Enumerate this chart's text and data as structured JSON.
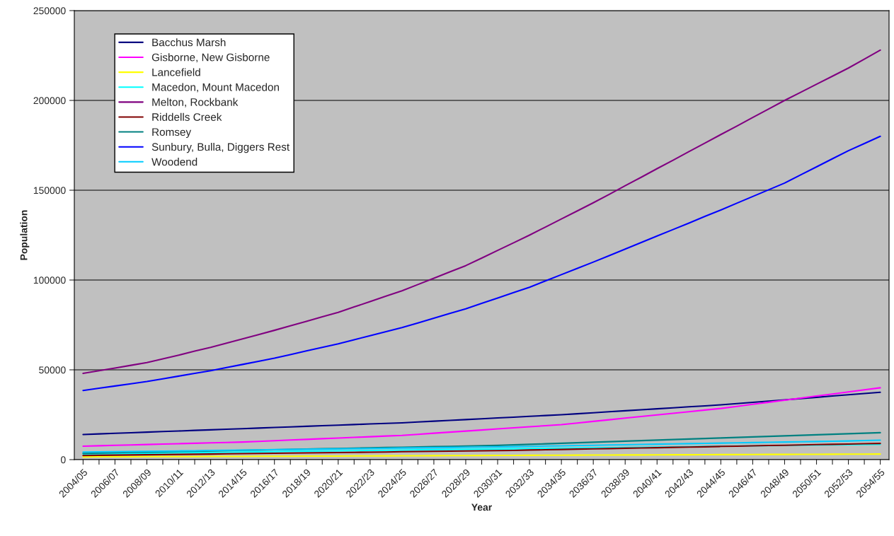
{
  "chart_data": {
    "type": "line",
    "xlabel": "Year",
    "ylabel": "Population",
    "categories": [
      "2004/05",
      null,
      "2006/07",
      null,
      "2008/09",
      null,
      "2010/11",
      null,
      "2012/13",
      null,
      "2014/15",
      null,
      "2016/17",
      null,
      "2018/19",
      null,
      "2020/21",
      null,
      "2022/23",
      null,
      "2024/25",
      null,
      "2026/27",
      null,
      "2028/29",
      null,
      "2030/31",
      null,
      "2032/33",
      null,
      "2034/35",
      null,
      "2036/37",
      null,
      "2038/39",
      null,
      "2040/41",
      null,
      "2042/43",
      null,
      "2044/45",
      null,
      "2046/47",
      null,
      "2048/49",
      null,
      "2050/51",
      null,
      "2052/53",
      null,
      "2054/55"
    ],
    "ylim": [
      0,
      250000
    ],
    "yticks": [
      0,
      50000,
      100000,
      150000,
      200000,
      250000
    ],
    "grid": "y",
    "legend": "top left",
    "marker": "none",
    "line_style": "solid",
    "series": [
      {
        "name": "Bacchus Marsh",
        "color": "#000080",
        "values": [
          14000,
          14325,
          14650,
          14975,
          15300,
          15625,
          15950,
          16275,
          16600,
          16925,
          17250,
          17575,
          17900,
          18225,
          18550,
          18875,
          19200,
          19525,
          19850,
          20175,
          20500,
          20950,
          21400,
          21850,
          22300,
          22750,
          23200,
          23650,
          24100,
          24550,
          25000,
          25550,
          26100,
          26650,
          27200,
          27750,
          28300,
          28850,
          29400,
          29950,
          30500,
          31200,
          31900,
          32600,
          33300,
          34000,
          34700,
          35400,
          36100,
          36800,
          37500
        ]
      },
      {
        "name": "Gisborne, New Gisborne",
        "color": "#ff00ff",
        "values": [
          7500,
          7730,
          7960,
          8190,
          8420,
          8650,
          8880,
          9110,
          9340,
          9570,
          9800,
          10170,
          10540,
          10910,
          11280,
          11650,
          12020,
          12390,
          12760,
          13130,
          13500,
          14100,
          14700,
          15300,
          15900,
          16500,
          17100,
          17700,
          18300,
          18900,
          19500,
          20400,
          21300,
          22200,
          23100,
          24000,
          24900,
          25800,
          26700,
          27600,
          28500,
          29650,
          30800,
          31950,
          33100,
          34250,
          35400,
          36550,
          37700,
          38850,
          40000
        ]
      },
      {
        "name": "Lancefield",
        "color": "#ffff00",
        "values": [
          1500,
          1550,
          1550,
          1600,
          1650,
          1650,
          1700,
          1700,
          1750,
          1800,
          1800,
          1850,
          1900,
          1900,
          1950,
          1950,
          2000,
          2050,
          2050,
          2100,
          2150,
          2150,
          2200,
          2250,
          2250,
          2300,
          2350,
          2350,
          2400,
          2450,
          2450,
          2500,
          2550,
          2550,
          2600,
          2600,
          2650,
          2700,
          2700,
          2750,
          2800,
          2800,
          2850,
          2900,
          2900,
          2950,
          2950,
          3000,
          3050,
          3050,
          3100
        ]
      },
      {
        "name": "Macedon, Mount Macedon",
        "color": "#00ffff",
        "values": [
          3200,
          3300,
          3400,
          3500,
          3600,
          3700,
          3850,
          3950,
          4050,
          4150,
          4250,
          4350,
          4450,
          4600,
          4700,
          4800,
          4900,
          5000,
          5100,
          5200,
          5300,
          5450,
          5550,
          5650,
          5750,
          5850,
          5950,
          6050,
          6150,
          6300,
          6400,
          6500,
          6600,
          6700,
          6800,
          6900,
          7000,
          7100,
          7200,
          7350,
          7450,
          7550,
          7650,
          7750,
          7850,
          7950,
          8050,
          8150,
          8250,
          8400,
          8500
        ]
      },
      {
        "name": "Melton, Rockbank",
        "color": "#800080",
        "values": [
          48000,
          49500,
          51000,
          52500,
          54000,
          56100,
          58200,
          60400,
          62500,
          64900,
          67200,
          69600,
          72000,
          74500,
          77000,
          79500,
          82000,
          85000,
          88000,
          91000,
          94000,
          97500,
          101000,
          104500,
          108000,
          112200,
          116500,
          120700,
          125000,
          129500,
          134000,
          138500,
          143000,
          147700,
          152500,
          157200,
          162000,
          166700,
          171500,
          176200,
          181000,
          185700,
          190500,
          195200,
          200000,
          204500,
          209000,
          213500,
          218000,
          223000,
          228000
        ]
      },
      {
        "name": "Riddells Creek",
        "color": "#800000",
        "values": [
          2300,
          2400,
          2500,
          2600,
          2700,
          2800,
          2900,
          3000,
          3100,
          3250,
          3350,
          3450,
          3550,
          3650,
          3750,
          3850,
          3950,
          4050,
          4150,
          4250,
          4400,
          4500,
          4600,
          4700,
          4800,
          4900,
          5000,
          5150,
          5350,
          5500,
          5650,
          5850,
          6000,
          6150,
          6350,
          6500,
          6650,
          6850,
          7000,
          7150,
          7350,
          7500,
          7650,
          7850,
          8000,
          8150,
          8350,
          8500,
          8650,
          8850,
          9000
        ]
      },
      {
        "name": "Romsey",
        "color": "#008080",
        "values": [
          3500,
          3670,
          3840,
          4010,
          4180,
          4350,
          4520,
          4690,
          4860,
          5030,
          5200,
          5370,
          5540,
          5710,
          5880,
          6050,
          6220,
          6390,
          6560,
          6730,
          6900,
          7070,
          7240,
          7410,
          7580,
          7750,
          7920,
          8215,
          8510,
          8805,
          9100,
          9395,
          9690,
          9985,
          10280,
          10575,
          10870,
          11165,
          11460,
          11755,
          12050,
          12345,
          12640,
          12935,
          13230,
          13525,
          13820,
          14115,
          14410,
          14705,
          15000
        ]
      },
      {
        "name": "Sunbury, Bulla, Diggers Rest",
        "color": "#0000ff",
        "values": [
          38500,
          39750,
          41000,
          42250,
          43500,
          45000,
          46500,
          48000,
          49500,
          51250,
          53000,
          54750,
          56500,
          58500,
          60500,
          62500,
          64500,
          66750,
          69000,
          71250,
          73500,
          76100,
          78750,
          81400,
          84000,
          87000,
          90000,
          93000,
          96000,
          99500,
          103000,
          106500,
          110000,
          113600,
          117200,
          120900,
          124500,
          128100,
          131700,
          135400,
          139000,
          142750,
          146500,
          150250,
          154000,
          158500,
          163000,
          167500,
          172000,
          176000,
          180000
        ]
      },
      {
        "name": "Woodend",
        "color": "#00ccff",
        "values": [
          4200,
          4300,
          4400,
          4500,
          4650,
          4750,
          4850,
          4950,
          5100,
          5200,
          5300,
          5400,
          5550,
          5650,
          5750,
          5850,
          6000,
          6100,
          6200,
          6300,
          6450,
          6550,
          6650,
          6750,
          6900,
          7000,
          7100,
          7250,
          7400,
          7550,
          7700,
          7850,
          8000,
          8150,
          8300,
          8450,
          8600,
          8750,
          8900,
          9050,
          9200,
          9350,
          9500,
          9650,
          9800,
          9950,
          10100,
          10250,
          10400,
          10600,
          10800
        ]
      }
    ]
  }
}
